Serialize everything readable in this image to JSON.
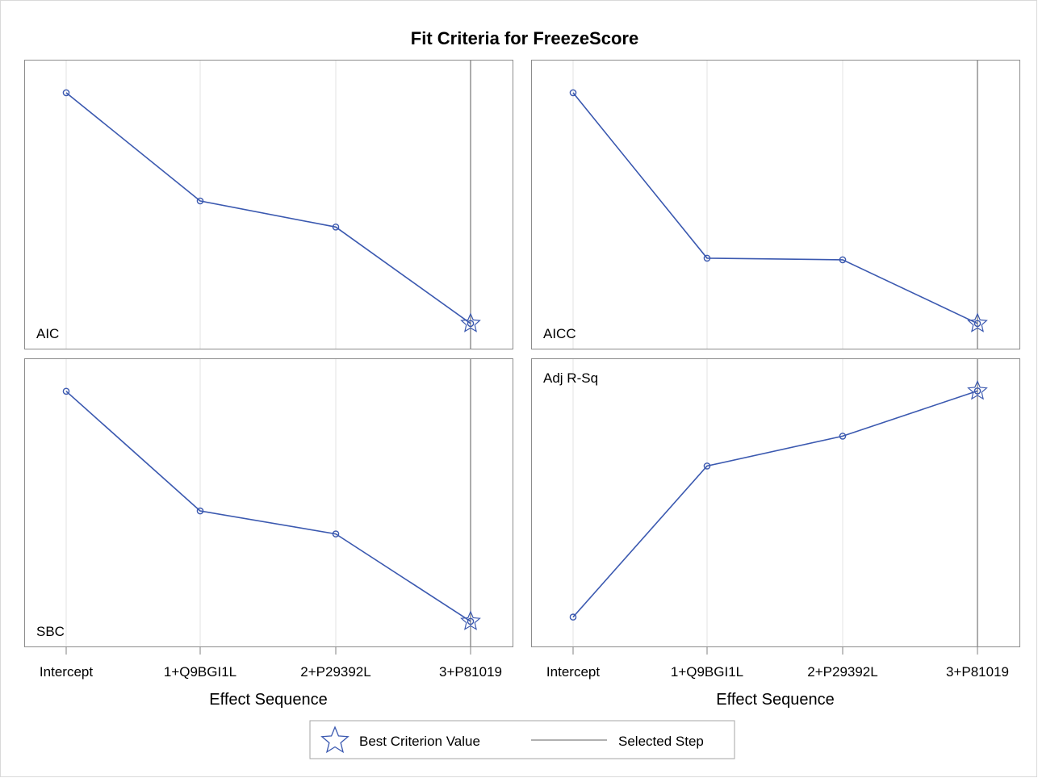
{
  "figure": {
    "title": "Fit Criteria for FreezeScore",
    "x_axis_label": "Effect Sequence",
    "categories": [
      "Intercept",
      "1+Q9BGI1L",
      "2+P29392L",
      "3+P81019"
    ],
    "selected_step": "3+P81019",
    "line_color": "#3b59b0",
    "frame_color": "#8c8c8c",
    "selected_line_color": "#808080",
    "grid_color": "#e3e3e3"
  },
  "legend": {
    "best_label": "Best Criterion Value",
    "selected_label": "Selected Step",
    "placement": "bottom-center"
  },
  "chart_data": [
    {
      "type": "line",
      "panel": "top-left",
      "title": "AIC",
      "title_position": "bottom-left",
      "categories": [
        "Intercept",
        "1+Q9BGI1L",
        "2+P29392L",
        "3+P81019"
      ],
      "values": [
        1.0,
        0.531,
        0.418,
        0.0
      ],
      "ylim": [
        -0.06,
        1.08
      ],
      "best_index": 3,
      "grid": true
    },
    {
      "type": "line",
      "panel": "top-right",
      "title": "AICC",
      "title_position": "bottom-left",
      "categories": [
        "Intercept",
        "1+Q9BGI1L",
        "2+P29392L",
        "3+P81019"
      ],
      "values": [
        1.0,
        0.283,
        0.276,
        0.0
      ],
      "ylim": [
        -0.06,
        1.08
      ],
      "best_index": 3,
      "grid": true
    },
    {
      "type": "line",
      "panel": "bottom-left",
      "title": "SBC",
      "title_position": "bottom-left",
      "categories": [
        "Intercept",
        "1+Q9BGI1L",
        "2+P29392L",
        "3+P81019"
      ],
      "values": [
        1.0,
        0.48,
        0.38,
        0.0
      ],
      "ylim": [
        -0.06,
        1.08
      ],
      "best_index": 3,
      "grid": true
    },
    {
      "type": "line",
      "panel": "bottom-right",
      "title": "Adj R-Sq",
      "title_position": "top-left",
      "categories": [
        "Intercept",
        "1+Q9BGI1L",
        "2+P29392L",
        "3+P81019"
      ],
      "values": [
        0.0,
        0.668,
        0.8,
        1.0
      ],
      "ylim": [
        -0.08,
        1.08
      ],
      "best_index": 3,
      "grid": true
    }
  ]
}
